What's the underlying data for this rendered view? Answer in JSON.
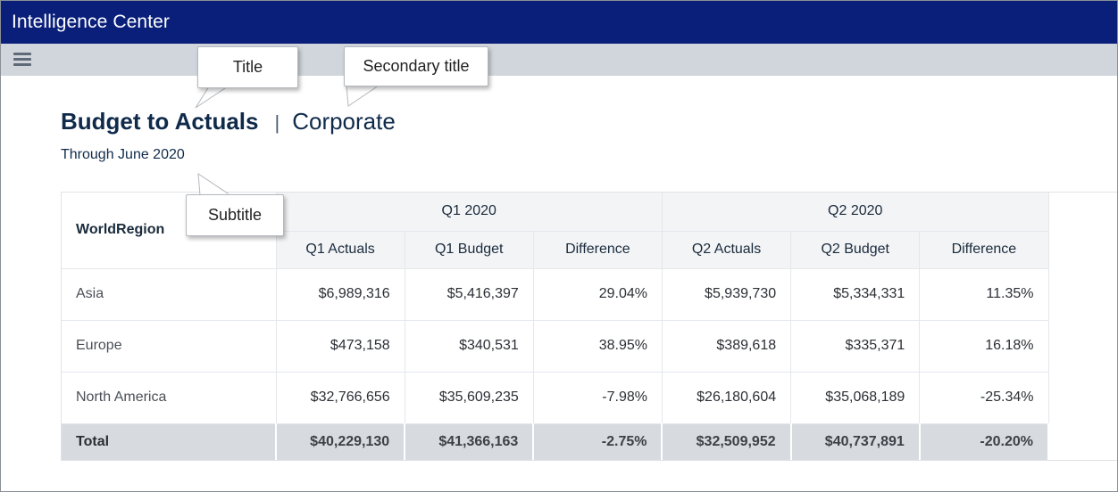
{
  "app": {
    "title": "Intelligence Center"
  },
  "toolbar": {
    "menu_icon": "hamburger-menu-icon"
  },
  "report": {
    "title": "Budget to Actuals",
    "separator": "|",
    "secondary_title": "Corporate",
    "subtitle": "Through June 2020"
  },
  "callouts": {
    "title": "Title",
    "secondary_title": "Secondary title",
    "subtitle": "Subtitle"
  },
  "table": {
    "row_header": "WorldRegion",
    "groups": [
      "Q1 2020",
      "Q2 2020"
    ],
    "columns": [
      "Q1 Actuals",
      "Q1 Budget",
      "Difference",
      "Q2 Actuals",
      "Q2 Budget",
      "Difference"
    ],
    "rows": [
      {
        "region": "Asia",
        "values": [
          "$6,989,316",
          "$5,416,397",
          "29.04%",
          "$5,939,730",
          "$5,334,331",
          "11.35%"
        ]
      },
      {
        "region": "Europe",
        "values": [
          "$473,158",
          "$340,531",
          "38.95%",
          "$389,618",
          "$335,371",
          "16.18%"
        ]
      },
      {
        "region": "North America",
        "values": [
          "$32,766,656",
          "$35,609,235",
          "-7.98%",
          "$26,180,604",
          "$35,068,189",
          "-25.34%"
        ]
      }
    ],
    "total": {
      "region": "Total",
      "values": [
        "$40,229,130",
        "$41,366,163",
        "-2.75%",
        "$32,509,952",
        "$40,737,891",
        "-20.20%"
      ]
    }
  },
  "colors": {
    "app_bar": "#0a1f7a",
    "toolbar": "#d1d6dc",
    "title_text": "#0f2a4a",
    "header_bg": "#f3f4f6",
    "total_bg": "#d7dade"
  }
}
